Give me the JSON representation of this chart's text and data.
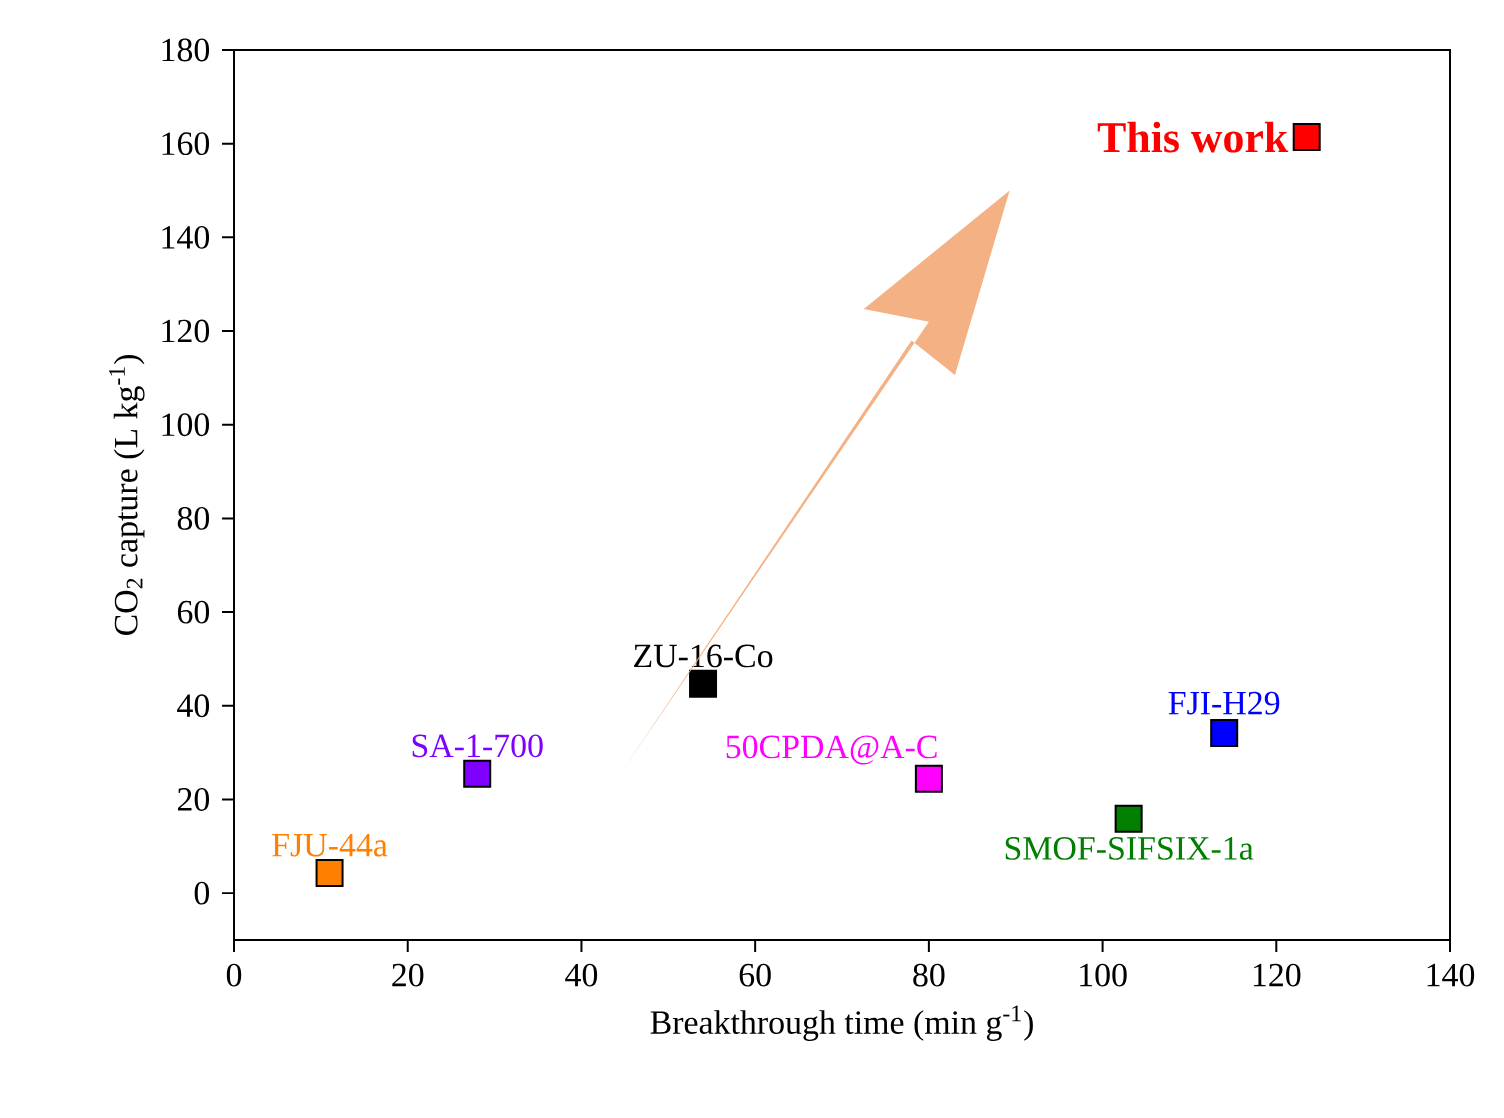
{
  "chart_data": {
    "type": "scatter",
    "xlabel": "Breakthrough time (min g$^{-1}$)",
    "ylabel": "CO$_{2}$ capture (L kg$^{-1}$)",
    "xlim": [
      0,
      140
    ],
    "ylim": [
      -10,
      180
    ],
    "xticks": [
      0,
      20,
      40,
      60,
      80,
      100,
      120,
      140
    ],
    "yticks": [
      0,
      20,
      40,
      60,
      80,
      100,
      120,
      140,
      160,
      180
    ],
    "marker": "square",
    "grid": false,
    "series": [
      {
        "name": "FJU-44a",
        "color": "#ff7f00",
        "x": [
          11
        ],
        "values": [
          4.3
        ]
      },
      {
        "name": "SA-1-700",
        "color": "#7f00ff",
        "x": [
          28
        ],
        "values": [
          25.5
        ]
      },
      {
        "name": "ZU-16-Co",
        "color": "#000000",
        "x": [
          54
        ],
        "values": [
          44.7
        ]
      },
      {
        "name": "50CPDA@A-C",
        "color": "#ff00ff",
        "x": [
          80
        ],
        "values": [
          24.4
        ]
      },
      {
        "name": "SMOF-SIFSIX-1a",
        "color": "#007f00",
        "x": [
          103
        ],
        "values": [
          15.9
        ]
      },
      {
        "name": "FJI-H29",
        "color": "#0000ff",
        "x": [
          114
        ],
        "values": [
          34.2
        ]
      },
      {
        "name": "This work",
        "color": "#ff0000",
        "x": [
          123.5
        ],
        "values": [
          161.4
        ]
      }
    ]
  }
}
